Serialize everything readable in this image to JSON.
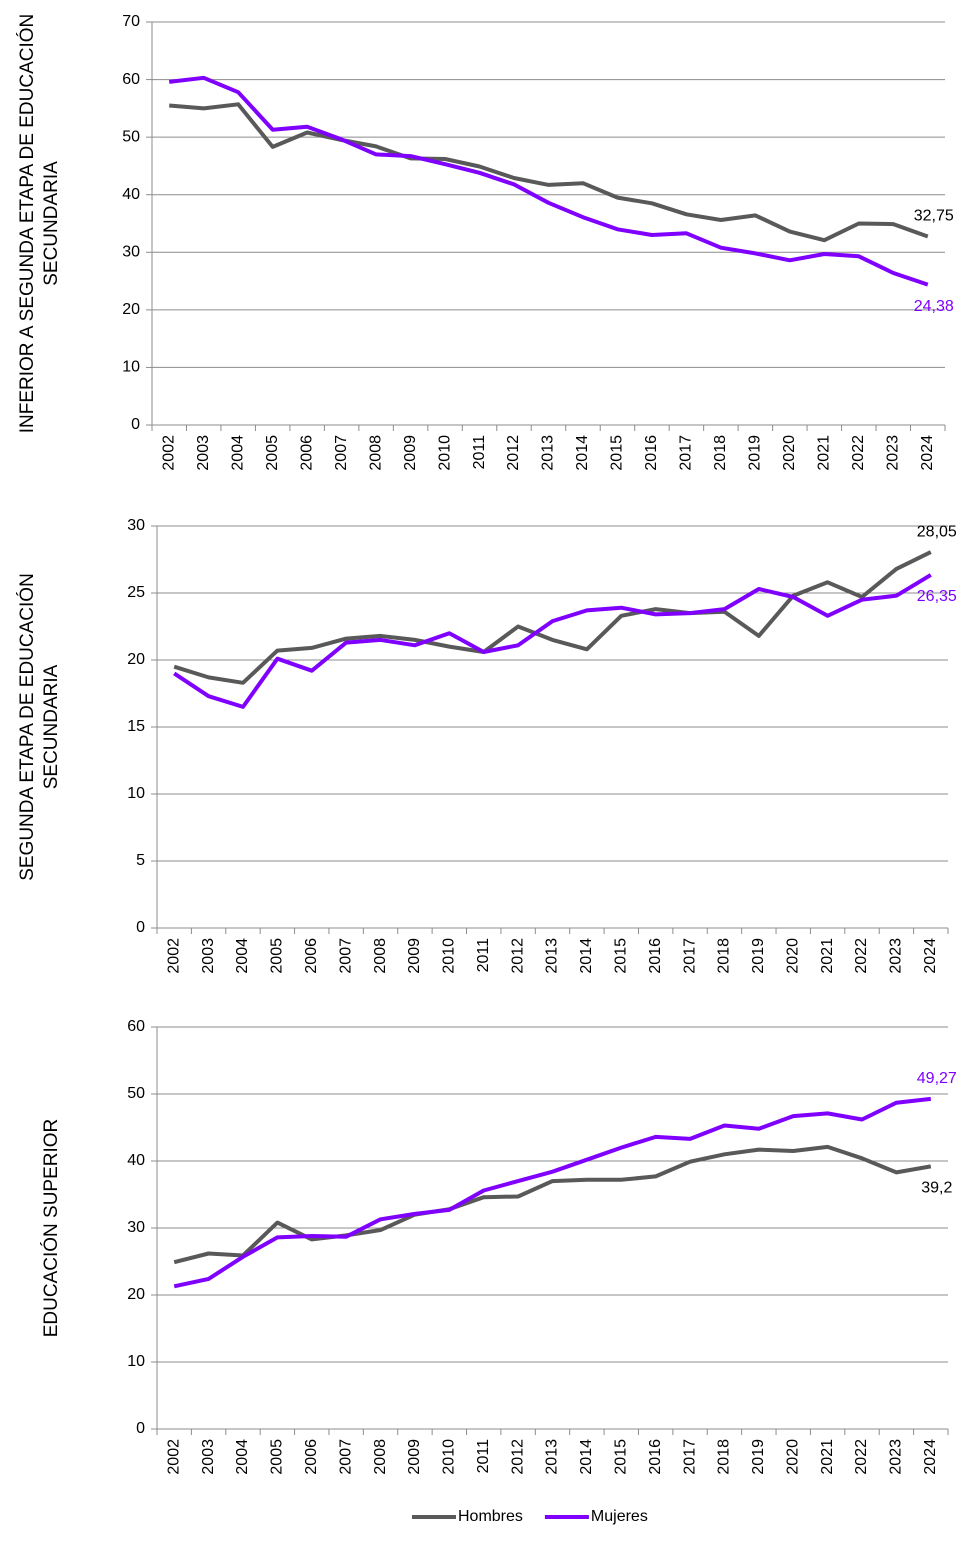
{
  "chart_data": [
    {
      "type": "line",
      "ylabel": [
        "INFERIOR A SEGUNDA ETAPA DE EDUCACIÓN",
        "SECUNDARIA"
      ],
      "categories": [
        "2002",
        "2003",
        "2004",
        "2005",
        "2006",
        "2007",
        "2008",
        "2009",
        "2010",
        "2011",
        "2012",
        "2013",
        "2014",
        "2015",
        "2016",
        "2017",
        "2018",
        "2019",
        "2020",
        "2021",
        "2022",
        "2023",
        "2024"
      ],
      "ylim": [
        0,
        70
      ],
      "yticks": [
        0,
        10,
        20,
        30,
        40,
        50,
        60,
        70
      ],
      "grid": true,
      "series": [
        {
          "color": "#595959",
          "values": [
            55.5,
            55,
            55.7,
            48.3,
            50.8,
            49.5,
            48.4,
            46.3,
            46.2,
            44.9,
            42.9,
            41.7,
            42.0,
            39.5,
            38.5,
            36.6,
            35.6,
            36.4,
            33.6,
            32.1,
            35.0,
            34.9,
            32.75
          ],
          "value_labels": [
            null,
            null,
            null,
            null,
            null,
            null,
            null,
            null,
            null,
            null,
            null,
            null,
            null,
            null,
            null,
            null,
            null,
            null,
            null,
            null,
            null,
            null,
            "32,75"
          ]
        },
        {
          "color": "#7f00ff",
          "values": [
            59.6,
            60.3,
            57.8,
            51.3,
            51.8,
            49.6,
            47.0,
            46.7,
            45.3,
            43.8,
            41.8,
            38.6,
            36.1,
            34.0,
            33.0,
            33.3,
            30.8,
            29.8,
            28.6,
            29.7,
            29.3,
            26.4,
            24.38
          ],
          "value_labels": [
            null,
            null,
            null,
            null,
            null,
            null,
            null,
            null,
            null,
            null,
            null,
            null,
            null,
            null,
            null,
            null,
            null,
            null,
            null,
            null,
            null,
            null,
            "24,38"
          ]
        }
      ]
    },
    {
      "type": "line",
      "ylabel": [
        "SEGUNDA ETAPA DE EDUCACIÓN",
        "SECUNDARIA"
      ],
      "categories": [
        "2002",
        "2003",
        "2004",
        "2005",
        "2006",
        "2007",
        "2008",
        "2009",
        "2010",
        "2011",
        "2012",
        "2013",
        "2014",
        "2015",
        "2016",
        "2017",
        "2018",
        "2019",
        "2020",
        "2021",
        "2022",
        "2023",
        "2024"
      ],
      "ylim": [
        0,
        30
      ],
      "yticks": [
        0,
        5,
        10,
        15,
        20,
        25,
        30
      ],
      "grid": true,
      "series": [
        {
          "color": "#595959",
          "values": [
            19.5,
            18.7,
            18.3,
            20.7,
            20.9,
            21.6,
            21.8,
            21.5,
            21.0,
            20.6,
            22.5,
            21.5,
            20.8,
            23.3,
            23.8,
            23.5,
            23.6,
            21.8,
            24.8,
            25.8,
            24.7,
            26.8,
            28.05
          ],
          "value_labels": [
            null,
            null,
            null,
            null,
            null,
            null,
            null,
            null,
            null,
            null,
            null,
            null,
            null,
            null,
            null,
            null,
            null,
            null,
            null,
            null,
            null,
            null,
            "28,05"
          ]
        },
        {
          "color": "#7f00ff",
          "values": [
            19.0,
            17.3,
            16.5,
            20.1,
            19.2,
            21.3,
            21.5,
            21.1,
            22.0,
            20.6,
            21.1,
            22.9,
            23.7,
            23.9,
            23.4,
            23.5,
            23.8,
            25.3,
            24.7,
            23.3,
            24.5,
            24.8,
            26.35
          ],
          "value_labels": [
            null,
            null,
            null,
            null,
            null,
            null,
            null,
            null,
            null,
            null,
            null,
            null,
            null,
            null,
            null,
            null,
            null,
            null,
            null,
            null,
            null,
            null,
            "26,35"
          ]
        }
      ]
    },
    {
      "type": "line",
      "ylabel": [
        "EDUCACIÓN SUPERIOR"
      ],
      "categories": [
        "2002",
        "2003",
        "2004",
        "2005",
        "2006",
        "2007",
        "2008",
        "2009",
        "2010",
        "2011",
        "2012",
        "2013",
        "2014",
        "2015",
        "2016",
        "2017",
        "2018",
        "2019",
        "2020",
        "2021",
        "2022",
        "2023",
        "2024"
      ],
      "ylim": [
        0,
        60
      ],
      "yticks": [
        0,
        10,
        20,
        30,
        40,
        50,
        60
      ],
      "grid": true,
      "legend": "bottom",
      "series": [
        {
          "name": "Hombres",
          "color": "#595959",
          "values": [
            24.9,
            26.2,
            25.9,
            30.8,
            28.3,
            28.9,
            29.7,
            32.0,
            32.8,
            34.6,
            34.7,
            37.0,
            37.2,
            37.2,
            37.7,
            39.9,
            41.0,
            41.7,
            41.5,
            42.1,
            40.4,
            38.3,
            39.2
          ],
          "value_labels": [
            null,
            null,
            null,
            null,
            null,
            null,
            null,
            null,
            null,
            null,
            null,
            null,
            null,
            null,
            null,
            null,
            null,
            null,
            null,
            null,
            null,
            null,
            "39,2"
          ]
        },
        {
          "name": "Mujeres",
          "color": "#7f00ff",
          "values": [
            21.3,
            22.4,
            25.7,
            28.6,
            28.8,
            28.7,
            31.3,
            32.1,
            32.7,
            35.6,
            37.0,
            38.4,
            40.2,
            42.0,
            43.6,
            43.3,
            45.3,
            44.8,
            46.7,
            47.1,
            46.2,
            48.7,
            49.27
          ],
          "value_labels": [
            null,
            null,
            null,
            null,
            null,
            null,
            null,
            null,
            null,
            null,
            null,
            null,
            null,
            null,
            null,
            null,
            null,
            null,
            null,
            null,
            null,
            null,
            "49,27"
          ]
        }
      ]
    }
  ]
}
